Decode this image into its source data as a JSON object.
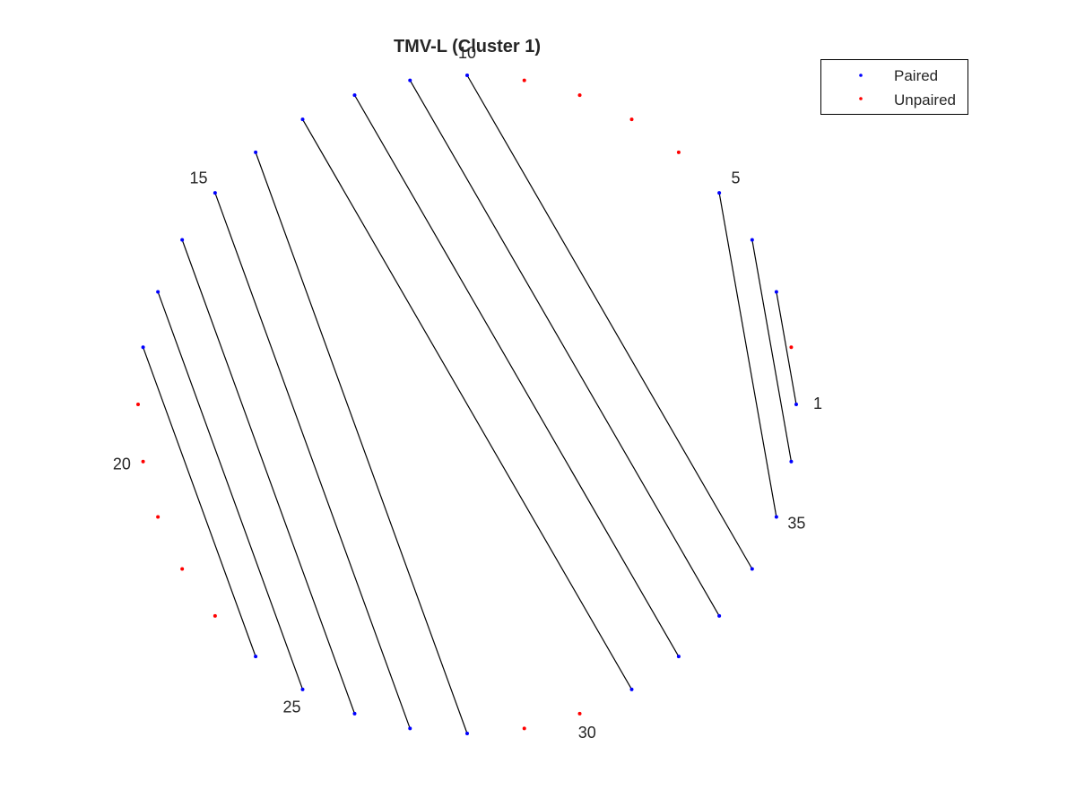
{
  "title": "TMV-L (Cluster 1)",
  "chart_data": {
    "type": "arc-diagram-circular",
    "title": "TMV-L (Cluster 1)",
    "num_positions": 36,
    "start_position": 1,
    "direction": "counterclockwise",
    "position_labels": [
      "1",
      "5",
      "10",
      "15",
      "20",
      "25",
      "30",
      "35"
    ],
    "pairs": [
      [
        1,
        3
      ],
      [
        36,
        4
      ],
      [
        35,
        5
      ],
      [
        34,
        10
      ],
      [
        33,
        11
      ],
      [
        32,
        12
      ],
      [
        31,
        13
      ],
      [
        28,
        14
      ],
      [
        27,
        15
      ],
      [
        26,
        16
      ],
      [
        25,
        17
      ],
      [
        24,
        18
      ]
    ],
    "unpaired": [
      2,
      6,
      7,
      8,
      9,
      19,
      20,
      21,
      22,
      23,
      29,
      30
    ],
    "legend": {
      "placement": "top-right",
      "entries": [
        {
          "label": "Paired",
          "color": "#0000ff"
        },
        {
          "label": "Unpaired",
          "color": "#ff0000"
        }
      ]
    },
    "colors": {
      "paired": "#0000ff",
      "unpaired": "#ff0000",
      "line": "#000000"
    },
    "grid": false,
    "axes": false
  }
}
